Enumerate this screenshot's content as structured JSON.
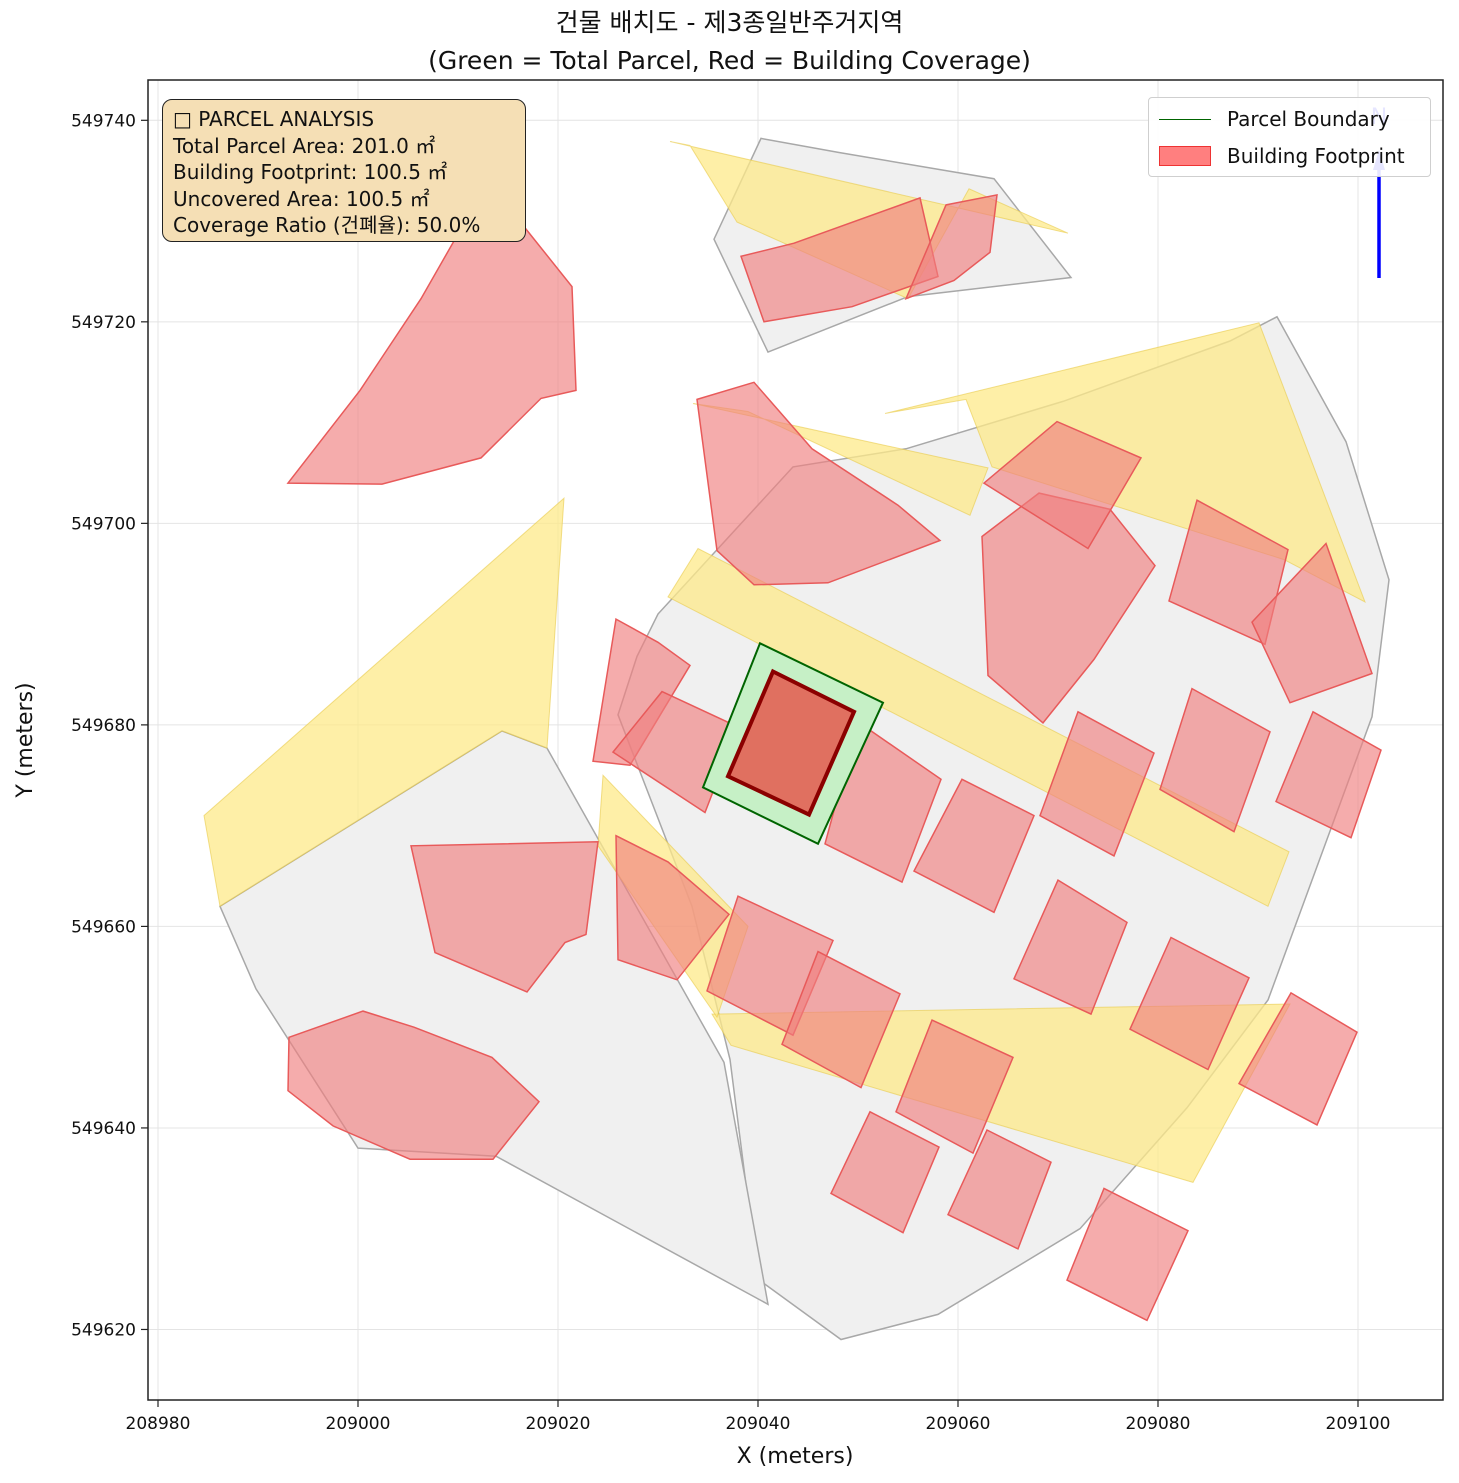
{
  "title": {
    "line1": "건물 배치도 - 제3종일반주거지역",
    "line2": "(Green = Total Parcel, Red = Building Coverage)"
  },
  "axes": {
    "xlabel": "X (meters)",
    "ylabel": "Y (meters)",
    "xlim": [
      208979,
      209108.5
    ],
    "ylim": [
      549613,
      549744
    ],
    "xticks": [
      208980,
      209000,
      209020,
      209040,
      209060,
      209080,
      209100
    ],
    "yticks": [
      549620,
      549640,
      549660,
      549680,
      549700,
      549720,
      549740
    ],
    "grid": true
  },
  "info_box": {
    "heading": "□ PARCEL ANALYSIS",
    "total_parcel_area": "Total Parcel Area: 201.0 ㎡",
    "building_footprint": "Building Footprint: 100.5 ㎡",
    "uncovered_area": "Uncovered Area: 100.5 ㎡",
    "coverage_ratio": "Coverage Ratio (건폐율): 50.0%"
  },
  "legend": {
    "position": "top-right",
    "items": [
      {
        "label": "Parcel Boundary",
        "color": "#006400",
        "kind": "line"
      },
      {
        "label": "Building Footprint",
        "color": "#ff0000",
        "kind": "patch"
      }
    ]
  },
  "north_arrow": {
    "label": "N",
    "color": "#0000ff"
  },
  "colors": {
    "target_parcel_fill": "#c6f0c6",
    "target_parcel_edge": "#006400",
    "target_building_fill": "#e07060",
    "target_building_edge": "#8b0000",
    "buildings": "#f08080",
    "roads": "#fde98a",
    "context_parcels": "#f0f0f0",
    "overlay": "#ffa040"
  },
  "chart_data": {
    "type": "map",
    "units": "meters",
    "target_parcel": {
      "area_m2": 201.0,
      "polygon": [
        [
          209040.2,
          549688.1
        ],
        [
          209052.5,
          549682.2
        ],
        [
          209046.0,
          549668.2
        ],
        [
          209034.5,
          549673.8
        ]
      ]
    },
    "target_building": {
      "area_m2": 100.5,
      "polygon": [
        [
          209041.5,
          549685.3
        ],
        [
          209049.6,
          549681.3
        ],
        [
          209045.1,
          549671.1
        ],
        [
          209037.0,
          549674.9
        ]
      ]
    },
    "roads": [
      [
        [
          209031.0,
          549692.7
        ],
        [
          209034.0,
          549697.5
        ],
        [
          209093.1,
          549667.4
        ],
        [
          209091.0,
          549662.0
        ]
      ],
      [
        [
          209035.4,
          549651.3
        ],
        [
          209037.3,
          549648.2
        ],
        [
          209083.5,
          549634.6
        ],
        [
          209093.2,
          549652.3
        ]
      ],
      [
        [
          208984.6,
          549671.0
        ],
        [
          208986.2,
          549662.0
        ],
        [
          209014.4,
          549679.4
        ],
        [
          209018.9,
          549677.7
        ],
        [
          209020.6,
          549702.5
        ]
      ],
      [
        [
          209024.5,
          549675.0
        ],
        [
          209024.0,
          549668.0
        ],
        [
          209035.9,
          549651.0
        ],
        [
          209039.0,
          549660.0
        ]
      ],
      [
        [
          209052.7,
          549710.9
        ],
        [
          209060.8,
          549712.3
        ],
        [
          209063.4,
          549705.6
        ],
        [
          209092.6,
          549696.4
        ],
        [
          209100.7,
          549692.2
        ],
        [
          209090.1,
          549719.9
        ]
      ],
      [
        [
          209031.2,
          549737.9
        ],
        [
          209033.2,
          549737.5
        ],
        [
          209037.9,
          549729.9
        ],
        [
          209055.0,
          549722.3
        ],
        [
          209061.1,
          549733.2
        ],
        [
          209071.0,
          549728.8
        ]
      ],
      [
        [
          209033.5,
          549711.9
        ],
        [
          209039.0,
          549711.1
        ],
        [
          209061.2,
          549700.8
        ],
        [
          209063.0,
          549705.5
        ]
      ]
    ],
    "context_parcels": [
      [
        [
          209040.3,
          549738.2
        ],
        [
          209048.1,
          549736.8
        ],
        [
          209063.6,
          549734.2
        ],
        [
          209071.3,
          549724.4
        ],
        [
          209055.0,
          549722.5
        ],
        [
          209041.0,
          549717.0
        ],
        [
          209035.6,
          549728.2
        ]
      ],
      [
        [
          209026.0,
          549681.0
        ],
        [
          209027.9,
          549686.8
        ],
        [
          209030.0,
          549691.0
        ],
        [
          209043.5,
          549705.6
        ],
        [
          209054.8,
          549707.4
        ],
        [
          209070.5,
          549712.1
        ],
        [
          209087.2,
          549718.1
        ],
        [
          209091.9,
          549720.5
        ],
        [
          209098.8,
          549708.1
        ],
        [
          209103.1,
          549694.4
        ],
        [
          209101.4,
          549680.8
        ],
        [
          209091.0,
          549652.7
        ],
        [
          209082.9,
          549642.0
        ],
        [
          209072.2,
          549630.0
        ],
        [
          209058.0,
          549621.5
        ],
        [
          209048.3,
          549619.0
        ],
        [
          209040.0,
          549625.0
        ],
        [
          209037.2,
          549646.8
        ],
        [
          209033.4,
          549662.0
        ],
        [
          209026.0,
          549681.0
        ]
      ],
      [
        [
          208986.2,
          549662.0
        ],
        [
          208989.8,
          549653.8
        ],
        [
          209000.0,
          549638.0
        ],
        [
          209013.8,
          549637.2
        ],
        [
          209041.0,
          549622.5
        ],
        [
          209036.6,
          549646.5
        ],
        [
          209018.9,
          549677.7
        ],
        [
          209014.4,
          549679.4
        ]
      ]
    ],
    "buildings": [
      [
        [
          209043.6,
          549727.8
        ],
        [
          209056.2,
          549732.3
        ],
        [
          209058.0,
          549724.5
        ],
        [
          209049.4,
          549721.5
        ],
        [
          209040.6,
          549720.0
        ],
        [
          209038.3,
          549726.5
        ]
      ],
      [
        [
          209058.8,
          549731.6
        ],
        [
          209063.9,
          549732.6
        ],
        [
          209063.2,
          549726.9
        ],
        [
          209059.6,
          549724.1
        ],
        [
          209054.8,
          549722.3
        ]
      ],
      [
        [
          208993.0,
          549704.0
        ],
        [
          209000.2,
          549713.2
        ],
        [
          209006.3,
          549722.3
        ],
        [
          209011.2,
          549730.8
        ],
        [
          209016.4,
          549729.7
        ],
        [
          209021.4,
          549723.5
        ],
        [
          209021.8,
          549713.2
        ],
        [
          209018.3,
          549712.4
        ],
        [
          209012.3,
          549706.5
        ],
        [
          209002.4,
          549703.9
        ]
      ],
      [
        [
          209033.9,
          549712.3
        ],
        [
          209039.6,
          549714.0
        ],
        [
          209045.4,
          549707.4
        ],
        [
          209054.0,
          549701.8
        ],
        [
          209058.2,
          549698.3
        ],
        [
          209047.0,
          549694.1
        ],
        [
          209039.6,
          549693.9
        ],
        [
          209035.9,
          549697.3
        ]
      ],
      [
        [
          209062.4,
          549698.7
        ],
        [
          209068.1,
          549703.0
        ],
        [
          209075.2,
          549701.4
        ],
        [
          209079.7,
          549695.8
        ],
        [
          209073.6,
          549686.5
        ],
        [
          209068.5,
          549680.2
        ],
        [
          209063.0,
          549684.9
        ]
      ],
      [
        [
          209083.9,
          549702.3
        ],
        [
          209093.0,
          549697.4
        ],
        [
          209090.7,
          549688.0
        ],
        [
          209081.1,
          549692.3
        ]
      ],
      [
        [
          209096.8,
          549698.0
        ],
        [
          209101.4,
          549685.1
        ],
        [
          209093.2,
          549682.2
        ],
        [
          209089.4,
          549690.2
        ]
      ],
      [
        [
          209062.6,
          549704.0
        ],
        [
          209069.9,
          549710.1
        ],
        [
          209078.3,
          549706.5
        ],
        [
          209073.0,
          549697.5
        ]
      ],
      [
        [
          209025.8,
          549690.5
        ],
        [
          209030.0,
          549688.2
        ],
        [
          209033.2,
          549685.9
        ],
        [
          209027.2,
          549676.0
        ],
        [
          209023.5,
          549676.4
        ]
      ],
      [
        [
          209030.4,
          549683.3
        ],
        [
          209038.0,
          549679.8
        ],
        [
          209034.7,
          549671.3
        ],
        [
          209025.5,
          549677.3
        ]
      ],
      [
        [
          209025.8,
          549669.0
        ],
        [
          209031.0,
          549666.4
        ],
        [
          209037.1,
          549661.2
        ],
        [
          209031.9,
          549654.7
        ],
        [
          209026.0,
          549656.7
        ]
      ],
      [
        [
          209050.0,
          549680.3
        ],
        [
          209058.3,
          549674.6
        ],
        [
          209054.4,
          549664.4
        ],
        [
          209046.7,
          549668.2
        ]
      ],
      [
        [
          209038.0,
          549663.0
        ],
        [
          209047.5,
          549658.6
        ],
        [
          209043.5,
          549649.2
        ],
        [
          209034.9,
          549653.6
        ]
      ],
      [
        [
          209060.4,
          549674.6
        ],
        [
          209067.6,
          549671.0
        ],
        [
          209063.6,
          549661.4
        ],
        [
          209055.6,
          549665.5
        ]
      ],
      [
        [
          209072.0,
          549681.3
        ],
        [
          209079.6,
          549677.2
        ],
        [
          209075.6,
          549667.0
        ],
        [
          209068.2,
          549671.0
        ]
      ],
      [
        [
          209083.4,
          549683.6
        ],
        [
          209091.2,
          549679.3
        ],
        [
          209087.6,
          549669.4
        ],
        [
          209080.2,
          549673.6
        ]
      ],
      [
        [
          209095.5,
          549681.3
        ],
        [
          209102.3,
          549677.5
        ],
        [
          209099.3,
          549668.8
        ],
        [
          209091.8,
          549672.4
        ]
      ],
      [
        [
          209046.0,
          549657.5
        ],
        [
          209054.2,
          549653.3
        ],
        [
          209050.3,
          549644.0
        ],
        [
          209042.4,
          549648.3
        ]
      ],
      [
        [
          209057.4,
          549650.7
        ],
        [
          209065.5,
          549647.0
        ],
        [
          209061.5,
          549637.5
        ],
        [
          209053.8,
          549641.6
        ]
      ],
      [
        [
          209070.0,
          549664.6
        ],
        [
          209076.9,
          549660.4
        ],
        [
          209073.3,
          549651.3
        ],
        [
          209065.6,
          549654.8
        ]
      ],
      [
        [
          209081.3,
          549658.9
        ],
        [
          209089.1,
          549654.9
        ],
        [
          209085.0,
          549645.8
        ],
        [
          209077.2,
          549649.8
        ]
      ],
      [
        [
          209093.3,
          549653.4
        ],
        [
          209099.9,
          549649.5
        ],
        [
          209095.9,
          549640.3
        ],
        [
          209088.1,
          549644.4
        ]
      ],
      [
        [
          209051.2,
          549641.6
        ],
        [
          209058.1,
          549638.1
        ],
        [
          209054.5,
          549629.6
        ],
        [
          209047.3,
          549633.5
        ]
      ],
      [
        [
          209062.9,
          549639.8
        ],
        [
          209069.3,
          549636.6
        ],
        [
          209066.0,
          549628.0
        ],
        [
          209059.0,
          549631.4
        ]
      ],
      [
        [
          209074.6,
          549634.0
        ],
        [
          209083.0,
          549629.8
        ],
        [
          209078.9,
          549620.9
        ],
        [
          209070.9,
          549624.9
        ]
      ],
      [
        [
          208993.1,
          549649.0
        ],
        [
          209000.5,
          549651.6
        ],
        [
          209005.6,
          549650.0
        ],
        [
          209013.4,
          549647.0
        ],
        [
          209018.1,
          549642.6
        ],
        [
          209013.5,
          549636.9
        ],
        [
          209005.2,
          549636.9
        ],
        [
          208997.5,
          549640.2
        ],
        [
          208993.0,
          549643.7
        ]
      ],
      [
        [
          209005.3,
          549668.0
        ],
        [
          209007.7,
          549657.4
        ],
        [
          209016.9,
          549653.5
        ],
        [
          209020.7,
          549658.4
        ],
        [
          209022.8,
          549659.2
        ],
        [
          209024.0,
          549668.4
        ]
      ]
    ]
  }
}
